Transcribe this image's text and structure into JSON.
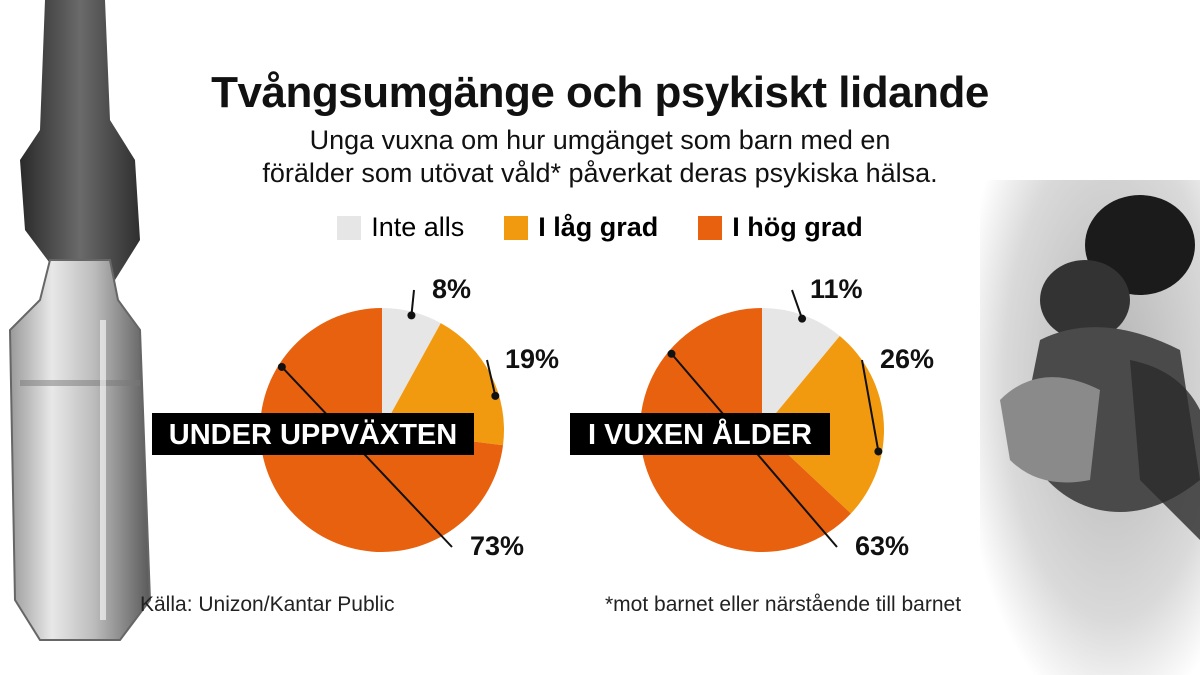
{
  "header": {
    "title": "Tvångsumgänge och psykiskt lidande",
    "subtitle_line1": "Unga vuxna om hur umgänget som barn med en",
    "subtitle_line2": "förälder som utövat våld* påverkat deras psykiska hälsa."
  },
  "legend": [
    {
      "label": "Inte alls",
      "color": "#e6e6e6"
    },
    {
      "label": "I låg grad",
      "color": "#f29a0f"
    },
    {
      "label": "I hög grad",
      "color": "#e8610e"
    }
  ],
  "chart_data": [
    {
      "type": "pie",
      "label": "UNDER UPPVÄXTEN",
      "slices": [
        {
          "name": "Inte alls",
          "value": 8,
          "text": "8%"
        },
        {
          "name": "I låg grad",
          "value": 19,
          "text": "19%"
        },
        {
          "name": "I hög grad",
          "value": 73,
          "text": "73%"
        }
      ]
    },
    {
      "type": "pie",
      "label": "I VUXEN ÅLDER",
      "slices": [
        {
          "name": "Inte alls",
          "value": 11,
          "text": "11%"
        },
        {
          "name": "I låg grad",
          "value": 26,
          "text": "26%"
        },
        {
          "name": "I hög grad",
          "value": 63,
          "text": "63%"
        }
      ]
    }
  ],
  "footer": {
    "source": "Källa: Unizon/Kantar Public",
    "footnote": "*mot barnet eller närstående till barnet"
  }
}
